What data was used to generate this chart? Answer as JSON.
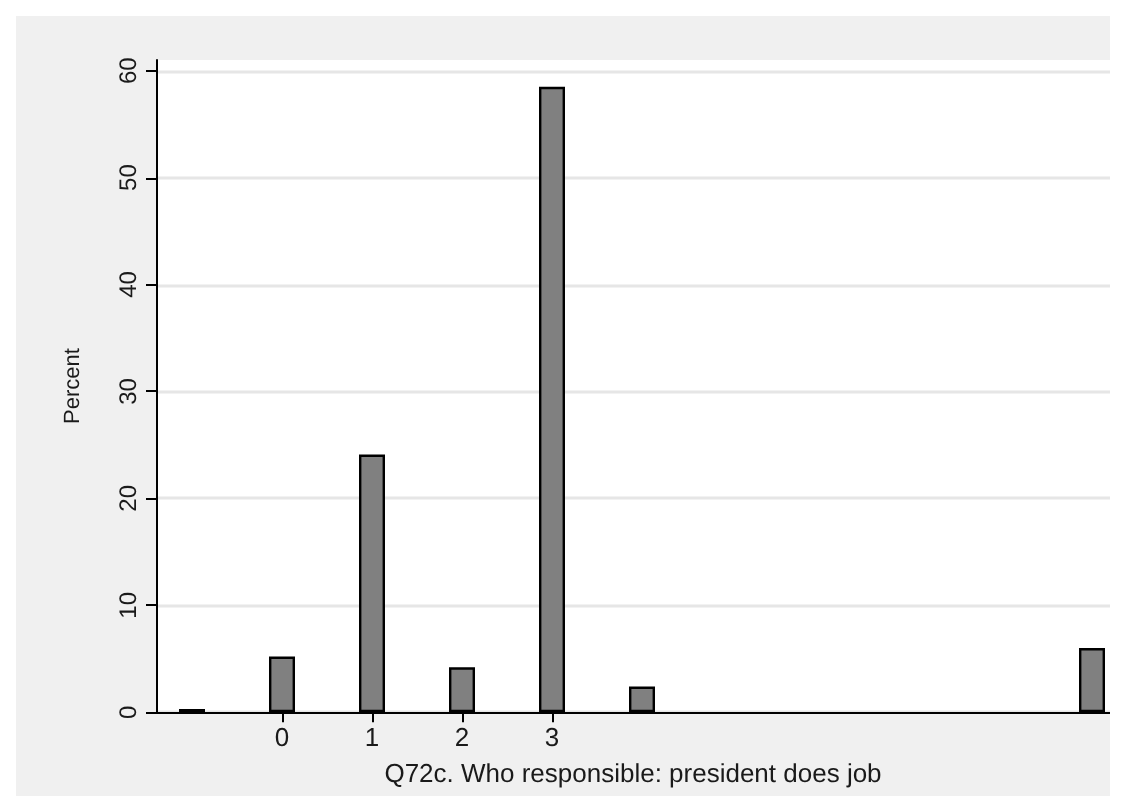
{
  "chart_data": {
    "type": "bar",
    "xlabel": "Q72c. Who responsible: president does job",
    "ylabel": "Percent",
    "x": [
      -1,
      0,
      1,
      2,
      3,
      4,
      9
    ],
    "values": [
      0.3,
      5.2,
      24.1,
      4.2,
      58.5,
      2.4,
      6.0
    ],
    "color": "#808080",
    "xlim": [
      -1.4,
      9.2
    ],
    "xticks": [
      0,
      1,
      2,
      3
    ],
    "ylim": [
      0,
      61
    ],
    "yticks": [
      0,
      10,
      20,
      30,
      40,
      50,
      60
    ],
    "grid": "y"
  }
}
